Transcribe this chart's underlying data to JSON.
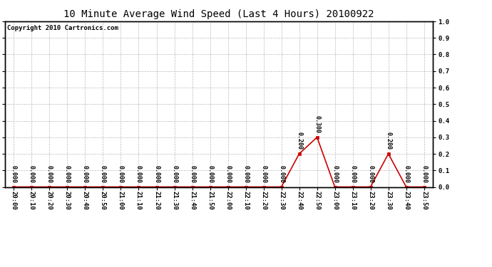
{
  "title": "10 Minute Average Wind Speed (Last 4 Hours) 20100922",
  "copyright": "Copyright 2010 Cartronics.com",
  "x_labels": [
    "20:00",
    "20:10",
    "20:20",
    "20:30",
    "20:40",
    "20:50",
    "21:00",
    "21:10",
    "21:20",
    "21:30",
    "21:40",
    "21:50",
    "22:00",
    "22:10",
    "22:20",
    "22:30",
    "22:40",
    "22:50",
    "23:00",
    "23:10",
    "23:20",
    "23:30",
    "23:40",
    "23:50"
  ],
  "values": [
    0.0,
    0.0,
    0.0,
    0.0,
    0.0,
    0.0,
    0.0,
    0.0,
    0.0,
    0.0,
    0.0,
    0.0,
    0.0,
    0.0,
    0.0,
    0.0,
    0.2,
    0.3,
    0.0,
    0.0,
    0.0,
    0.2,
    0.0,
    0.0
  ],
  "ylim": [
    0.0,
    1.0
  ],
  "yticks": [
    0.0,
    0.1,
    0.2,
    0.3,
    0.4,
    0.5,
    0.6,
    0.7,
    0.8,
    0.9,
    1.0
  ],
  "line_color": "#cc0000",
  "marker_color": "#cc0000",
  "grid_color": "#bbbbbb",
  "bg_color": "#ffffff",
  "title_fontsize": 10,
  "copyright_fontsize": 6.5,
  "annotation_fontsize": 6,
  "tick_label_fontsize": 6.5
}
